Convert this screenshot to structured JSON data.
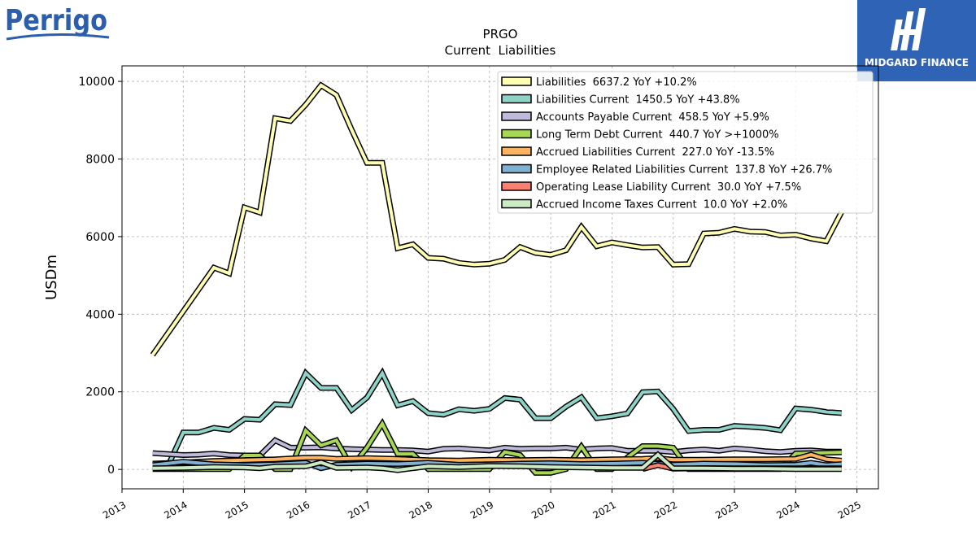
{
  "brand": {
    "logo_text": "Perrigo",
    "badge_text": "MIDGARD FINANCE"
  },
  "chart_data": {
    "type": "line",
    "title": "PRGO",
    "subtitle": "Current  Liabilities",
    "ylabel": "USDm",
    "xlabel": "",
    "ylim": [
      -500,
      10400
    ],
    "xlim": [
      2013.0,
      2025.35
    ],
    "yticks": [
      0,
      2000,
      4000,
      6000,
      8000,
      10000
    ],
    "xticks": [
      "2013",
      "2014",
      "2015",
      "2016",
      "2017",
      "2018",
      "2019",
      "2020",
      "2021",
      "2022",
      "2023",
      "2024",
      "2025"
    ],
    "grid": true,
    "legend_position": "top-right",
    "series": [
      {
        "name": "Liabilities  6637.2 YoY +10.2%",
        "color": "#ffffb3",
        "points": [
          [
            2013.5,
            2950
          ],
          [
            2014.5,
            5200
          ],
          [
            2014.75,
            5050
          ],
          [
            2015.0,
            6750
          ],
          [
            2015.25,
            6620
          ],
          [
            2015.5,
            9050
          ],
          [
            2015.75,
            8980
          ],
          [
            2016.0,
            9400
          ],
          [
            2016.25,
            9900
          ],
          [
            2016.5,
            9650
          ],
          [
            2016.75,
            8750
          ],
          [
            2017.0,
            7900
          ],
          [
            2017.25,
            7900
          ],
          [
            2017.5,
            5700
          ],
          [
            2017.75,
            5800
          ],
          [
            2018.0,
            5450
          ],
          [
            2018.25,
            5430
          ],
          [
            2018.5,
            5320
          ],
          [
            2018.75,
            5280
          ],
          [
            2019.0,
            5300
          ],
          [
            2019.25,
            5400
          ],
          [
            2019.5,
            5730
          ],
          [
            2019.75,
            5580
          ],
          [
            2020.0,
            5530
          ],
          [
            2020.25,
            5650
          ],
          [
            2020.5,
            6250
          ],
          [
            2020.75,
            5750
          ],
          [
            2021.0,
            5850
          ],
          [
            2021.25,
            5780
          ],
          [
            2021.5,
            5720
          ],
          [
            2021.75,
            5730
          ],
          [
            2022.0,
            5280
          ],
          [
            2022.25,
            5290
          ],
          [
            2022.5,
            6080
          ],
          [
            2022.75,
            6100
          ],
          [
            2023.0,
            6200
          ],
          [
            2023.25,
            6130
          ],
          [
            2023.5,
            6120
          ],
          [
            2023.75,
            6030
          ],
          [
            2024.0,
            6050
          ],
          [
            2024.25,
            5950
          ],
          [
            2024.5,
            5880
          ],
          [
            2024.75,
            6637.2
          ]
        ]
      },
      {
        "name": "Liabilities Current  1450.5 YoY +43.8%",
        "color": "#8dd3c7",
        "points": [
          [
            2013.5,
            60
          ],
          [
            2013.75,
            90
          ],
          [
            2014.0,
            950
          ],
          [
            2014.25,
            950
          ],
          [
            2014.5,
            1070
          ],
          [
            2014.75,
            1020
          ],
          [
            2015.0,
            1300
          ],
          [
            2015.25,
            1280
          ],
          [
            2015.5,
            1680
          ],
          [
            2015.75,
            1660
          ],
          [
            2016.0,
            2480
          ],
          [
            2016.25,
            2100
          ],
          [
            2016.5,
            2100
          ],
          [
            2016.75,
            1530
          ],
          [
            2017.0,
            1850
          ],
          [
            2017.25,
            2480
          ],
          [
            2017.5,
            1650
          ],
          [
            2017.75,
            1760
          ],
          [
            2018.0,
            1450
          ],
          [
            2018.25,
            1410
          ],
          [
            2018.5,
            1550
          ],
          [
            2018.75,
            1510
          ],
          [
            2019.0,
            1560
          ],
          [
            2019.25,
            1840
          ],
          [
            2019.5,
            1800
          ],
          [
            2019.75,
            1320
          ],
          [
            2020.0,
            1320
          ],
          [
            2020.25,
            1620
          ],
          [
            2020.5,
            1860
          ],
          [
            2020.75,
            1320
          ],
          [
            2021.0,
            1370
          ],
          [
            2021.25,
            1440
          ],
          [
            2021.5,
            1990
          ],
          [
            2021.75,
            2010
          ],
          [
            2022.0,
            1560
          ],
          [
            2022.25,
            990
          ],
          [
            2022.5,
            1020
          ],
          [
            2022.75,
            1020
          ],
          [
            2023.0,
            1120
          ],
          [
            2023.25,
            1100
          ],
          [
            2023.5,
            1070
          ],
          [
            2023.75,
            1010
          ],
          [
            2024.0,
            1570
          ],
          [
            2024.25,
            1540
          ],
          [
            2024.5,
            1480
          ],
          [
            2024.75,
            1450.5
          ]
        ]
      },
      {
        "name": "Accounts Payable Current  458.5 YoY +5.9%",
        "color": "#bebada",
        "points": [
          [
            2013.5,
            420
          ],
          [
            2014.0,
            370
          ],
          [
            2014.25,
            380
          ],
          [
            2014.5,
            410
          ],
          [
            2014.75,
            370
          ],
          [
            2015.0,
            360
          ],
          [
            2015.25,
            360
          ],
          [
            2015.5,
            750
          ],
          [
            2015.75,
            560
          ],
          [
            2016.0,
            560
          ],
          [
            2016.25,
            570
          ],
          [
            2016.5,
            540
          ],
          [
            2016.75,
            520
          ],
          [
            2017.0,
            510
          ],
          [
            2017.25,
            500
          ],
          [
            2017.5,
            500
          ],
          [
            2017.75,
            490
          ],
          [
            2018.0,
            460
          ],
          [
            2018.25,
            530
          ],
          [
            2018.5,
            540
          ],
          [
            2018.75,
            510
          ],
          [
            2019.0,
            490
          ],
          [
            2019.25,
            560
          ],
          [
            2019.5,
            530
          ],
          [
            2019.75,
            540
          ],
          [
            2020.0,
            540
          ],
          [
            2020.25,
            560
          ],
          [
            2020.5,
            510
          ],
          [
            2020.75,
            540
          ],
          [
            2021.0,
            550
          ],
          [
            2021.25,
            480
          ],
          [
            2021.5,
            480
          ],
          [
            2021.75,
            480
          ],
          [
            2022.0,
            450
          ],
          [
            2022.25,
            490
          ],
          [
            2022.5,
            510
          ],
          [
            2022.75,
            480
          ],
          [
            2023.0,
            540
          ],
          [
            2023.25,
            510
          ],
          [
            2023.5,
            470
          ],
          [
            2023.75,
            450
          ],
          [
            2024.0,
            480
          ],
          [
            2024.25,
            490
          ],
          [
            2024.5,
            460
          ],
          [
            2024.75,
            458.5
          ]
        ]
      },
      {
        "name": "Long Term Debt Current  440.7 YoY >+1000%",
        "color": "#a6d854",
        "points": [
          [
            2013.5,
            10
          ],
          [
            2014.75,
            10
          ],
          [
            2015.0,
            360
          ],
          [
            2015.25,
            360
          ],
          [
            2015.5,
            10
          ],
          [
            2015.75,
            10
          ],
          [
            2016.0,
            1000
          ],
          [
            2016.25,
            620
          ],
          [
            2016.5,
            750
          ],
          [
            2016.75,
            60
          ],
          [
            2017.0,
            560
          ],
          [
            2017.25,
            1180
          ],
          [
            2017.5,
            400
          ],
          [
            2017.75,
            400
          ],
          [
            2018.0,
            10
          ],
          [
            2018.5,
            10
          ],
          [
            2018.75,
            10
          ],
          [
            2019.0,
            10
          ],
          [
            2019.25,
            450
          ],
          [
            2019.5,
            370
          ],
          [
            2019.75,
            -90
          ],
          [
            2020.0,
            -90
          ],
          [
            2020.25,
            10
          ],
          [
            2020.5,
            590
          ],
          [
            2020.75,
            10
          ],
          [
            2021.0,
            10
          ],
          [
            2021.5,
            600
          ],
          [
            2021.75,
            600
          ],
          [
            2022.0,
            560
          ],
          [
            2022.25,
            10
          ],
          [
            2022.5,
            10
          ],
          [
            2023.5,
            10
          ],
          [
            2023.75,
            10
          ],
          [
            2024.0,
            410
          ],
          [
            2024.25,
            420
          ],
          [
            2024.5,
            430
          ],
          [
            2024.75,
            440.7
          ]
        ]
      },
      {
        "name": "Accrued Liabilities Current  227.0 YoY -13.5%",
        "color": "#fdb462",
        "points": [
          [
            2013.5,
            150
          ],
          [
            2014.0,
            180
          ],
          [
            2014.5,
            220
          ],
          [
            2015.0,
            240
          ],
          [
            2015.25,
            250
          ],
          [
            2015.5,
            260
          ],
          [
            2016.0,
            300
          ],
          [
            2016.25,
            300
          ],
          [
            2016.5,
            270
          ],
          [
            2017.0,
            290
          ],
          [
            2017.5,
            270
          ],
          [
            2018.0,
            240
          ],
          [
            2018.5,
            230
          ],
          [
            2019.0,
            250
          ],
          [
            2019.5,
            240
          ],
          [
            2020.0,
            250
          ],
          [
            2020.5,
            240
          ],
          [
            2021.0,
            260
          ],
          [
            2021.5,
            270
          ],
          [
            2021.75,
            290
          ],
          [
            2022.0,
            250
          ],
          [
            2022.5,
            250
          ],
          [
            2023.0,
            260
          ],
          [
            2023.5,
            260
          ],
          [
            2024.0,
            270
          ],
          [
            2024.25,
            380
          ],
          [
            2024.5,
            260
          ],
          [
            2024.75,
            227.0
          ]
        ]
      },
      {
        "name": "Employee Related Liabilities Current  137.8 YoY +26.7%",
        "color": "#80b1d3",
        "points": [
          [
            2013.5,
            110
          ],
          [
            2014.0,
            200
          ],
          [
            2014.5,
            130
          ],
          [
            2015.0,
            110
          ],
          [
            2015.5,
            130
          ],
          [
            2016.0,
            170
          ],
          [
            2016.25,
            30
          ],
          [
            2016.5,
            120
          ],
          [
            2017.0,
            150
          ],
          [
            2017.5,
            140
          ],
          [
            2018.0,
            170
          ],
          [
            2018.5,
            120
          ],
          [
            2019.0,
            130
          ],
          [
            2019.5,
            150
          ],
          [
            2020.0,
            160
          ],
          [
            2020.5,
            140
          ],
          [
            2021.0,
            150
          ],
          [
            2021.5,
            170
          ],
          [
            2022.0,
            120
          ],
          [
            2022.5,
            150
          ],
          [
            2023.0,
            140
          ],
          [
            2023.5,
            110
          ],
          [
            2024.0,
            120
          ],
          [
            2024.25,
            170
          ],
          [
            2024.5,
            110
          ],
          [
            2024.75,
            137.8
          ]
        ]
      },
      {
        "name": "Operating Lease Liability Current  30.0 YoY +7.5%",
        "color": "#fb8072",
        "points": [
          [
            2021.5,
            10
          ],
          [
            2021.75,
            110
          ],
          [
            2022.0,
            20
          ],
          [
            2022.5,
            30
          ],
          [
            2023.0,
            30
          ],
          [
            2023.5,
            30
          ],
          [
            2024.0,
            30
          ],
          [
            2024.5,
            30
          ],
          [
            2024.75,
            30.0
          ]
        ]
      },
      {
        "name": "Accrued Income Taxes Current  10.0 YoY +2.0%",
        "color": "#ccebc5",
        "points": [
          [
            2013.5,
            30
          ],
          [
            2014.0,
            40
          ],
          [
            2014.5,
            60
          ],
          [
            2015.0,
            50
          ],
          [
            2015.25,
            30
          ],
          [
            2015.5,
            70
          ],
          [
            2016.0,
            80
          ],
          [
            2016.25,
            180
          ],
          [
            2016.5,
            40
          ],
          [
            2017.0,
            50
          ],
          [
            2017.25,
            30
          ],
          [
            2017.5,
            -20
          ],
          [
            2018.0,
            80
          ],
          [
            2018.5,
            60
          ],
          [
            2019.0,
            90
          ],
          [
            2019.5,
            80
          ],
          [
            2020.0,
            60
          ],
          [
            2020.5,
            50
          ],
          [
            2021.0,
            40
          ],
          [
            2021.5,
            40
          ],
          [
            2021.75,
            380
          ],
          [
            2022.0,
            30
          ],
          [
            2022.5,
            30
          ],
          [
            2023.0,
            20
          ],
          [
            2023.5,
            20
          ],
          [
            2024.0,
            10
          ],
          [
            2024.5,
            10
          ],
          [
            2024.75,
            10.0
          ]
        ]
      }
    ]
  }
}
